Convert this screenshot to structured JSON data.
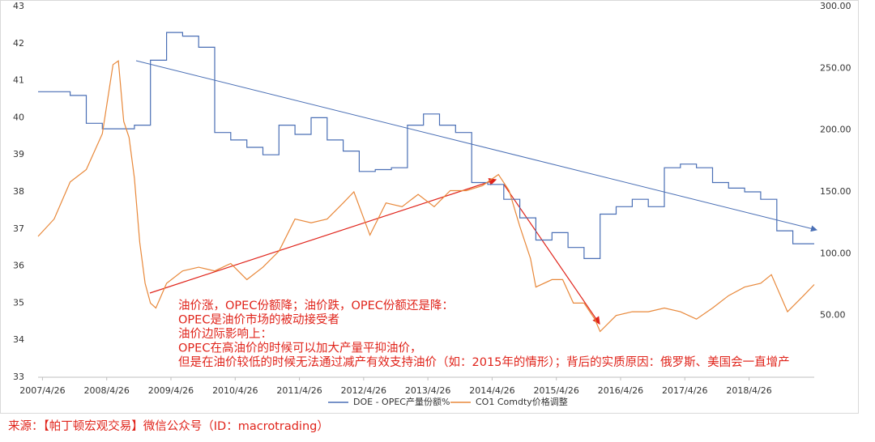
{
  "chart_data": {
    "type": "line",
    "xlim": [
      "2007/4",
      "2019/5"
    ],
    "xticks": [
      "2007/4/26",
      "2008/4/26",
      "2009/4/26",
      "2010/4/26",
      "2011/4/26",
      "2012/4/26",
      "2013/4/26",
      "2014/4/26",
      "2015/4/26",
      "2016/4/26",
      "2017/4/26",
      "2018/4/26"
    ],
    "ylim": [
      33,
      43
    ],
    "yticks": [
      33,
      34,
      35,
      36,
      37,
      38,
      39,
      40,
      41,
      42,
      43
    ],
    "y2lim": [
      0,
      300
    ],
    "y2ticks": [
      {
        "value": 50,
        "label": "50.00"
      },
      {
        "value": 100,
        "label": "100.00"
      },
      {
        "value": 150,
        "label": "150.00"
      },
      {
        "value": 200,
        "label": "200.00"
      },
      {
        "value": 250,
        "label": "250.00"
      },
      {
        "value": 300,
        "label": "300.00"
      }
    ],
    "grid": false,
    "legend": "bottom",
    "series": [
      {
        "name": "DOE - OPEC产量份额%",
        "color": "#4a6fb5",
        "step": true,
        "x": [
          "2007/4",
          "2007/10",
          "2008/1",
          "2008/4",
          "2008/10",
          "2009/1",
          "2009/4",
          "2009/7",
          "2009/10",
          "2010/1",
          "2010/4",
          "2010/7",
          "2010/10",
          "2011/1",
          "2011/4",
          "2011/7",
          "2011/10",
          "2012/1",
          "2012/4",
          "2012/7",
          "2012/10",
          "2013/1",
          "2013/4",
          "2013/7",
          "2013/10",
          "2014/1",
          "2014/4",
          "2014/7",
          "2014/10",
          "2015/1",
          "2015/4",
          "2015/7",
          "2015/10",
          "2016/1",
          "2016/4",
          "2016/7",
          "2016/10",
          "2017/1",
          "2017/4",
          "2017/7",
          "2017/10",
          "2018/1",
          "2018/4",
          "2018/7",
          "2018/10",
          "2019/1",
          "2019/5"
        ],
        "values": [
          40.7,
          40.6,
          39.85,
          39.7,
          39.8,
          41.55,
          42.3,
          42.2,
          41.9,
          39.6,
          39.4,
          39.2,
          39.0,
          39.8,
          39.55,
          40.0,
          39.4,
          39.1,
          38.55,
          38.6,
          38.65,
          39.8,
          40.1,
          39.8,
          39.6,
          38.25,
          38.2,
          37.8,
          37.3,
          36.7,
          36.9,
          36.5,
          36.2,
          37.4,
          37.6,
          37.8,
          37.6,
          38.65,
          38.75,
          38.65,
          38.25,
          38.1,
          38.0,
          37.8,
          36.95,
          36.6,
          36.6
        ]
      },
      {
        "name": "CO1 Comdty价格调整",
        "color": "#e8883a",
        "axis": "y2",
        "x": [
          "2007/4",
          "2007/7",
          "2007/10",
          "2008/1",
          "2008/4",
          "2008/6",
          "2008/7",
          "2008/8",
          "2008/9",
          "2008/10",
          "2008/11",
          "2008/12",
          "2009/1",
          "2009/2",
          "2009/4",
          "2009/7",
          "2009/10",
          "2010/1",
          "2010/4",
          "2010/7",
          "2010/10",
          "2011/1",
          "2011/4",
          "2011/7",
          "2011/10",
          "2012/1",
          "2012/3",
          "2012/6",
          "2012/9",
          "2012/12",
          "2013/3",
          "2013/6",
          "2013/9",
          "2013/12",
          "2014/3",
          "2014/6",
          "2014/8",
          "2014/10",
          "2014/12",
          "2015/1",
          "2015/4",
          "2015/6",
          "2015/8",
          "2015/10",
          "2015/12",
          "2016/1",
          "2016/4",
          "2016/7",
          "2016/10",
          "2017/1",
          "2017/4",
          "2017/7",
          "2017/10",
          "2018/1",
          "2018/4",
          "2018/7",
          "2018/9",
          "2018/12",
          "2019/3",
          "2019/5"
        ],
        "values": [
          114,
          128,
          158,
          168,
          197,
          253,
          256,
          207,
          194,
          161,
          109,
          76,
          60,
          56,
          76,
          86,
          89,
          86,
          92,
          79,
          89,
          102,
          128,
          125,
          128,
          141,
          150,
          115,
          141,
          138,
          148,
          138,
          151,
          151,
          155,
          164,
          151,
          122,
          96,
          73,
          79,
          79,
          60,
          60,
          47,
          37,
          50,
          53,
          53,
          56,
          53,
          47,
          56,
          66,
          73,
          76,
          83,
          53,
          66,
          75
        ]
      }
    ],
    "annotations": [
      "油价涨，OPEC份额降；油价跌，OPEC份额还是降：",
      "OPEC是油价市场的被动接受者",
      "油价边际影响上：",
      "OPEC在高油价的时候可以加大产量平抑油价，",
      "但是在油价较低的时候无法通过减产有效支持油价（如：2015年的情形）；背后的实质原因：俄罗斯、美国会一直增产"
    ],
    "source": "来源：【帕丁顿宏观交易】微信公众号（ID：macrotrading）"
  }
}
